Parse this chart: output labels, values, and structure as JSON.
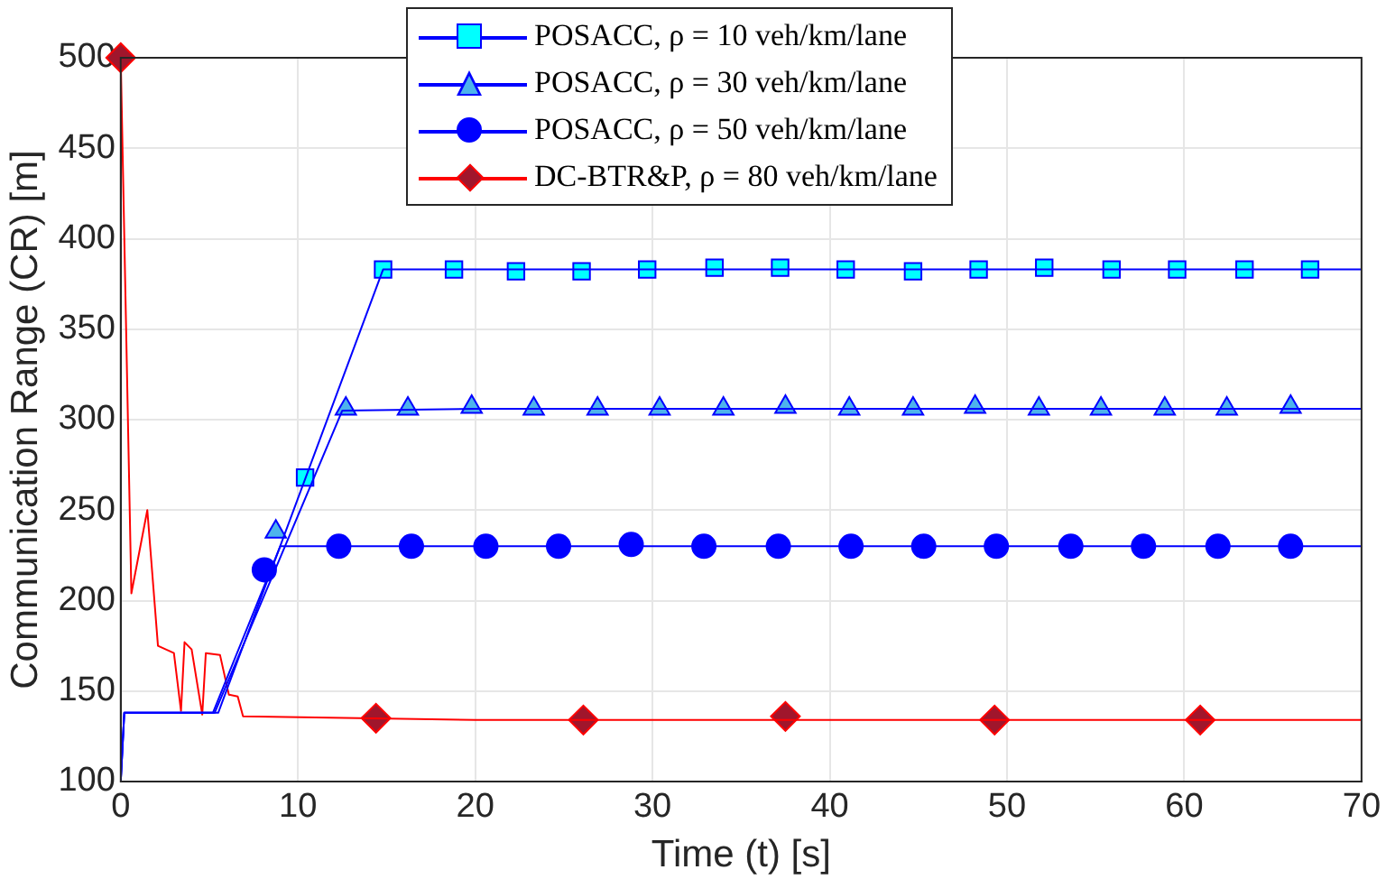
{
  "chart_data": {
    "type": "line",
    "xlabel": "Time (t) [s]",
    "ylabel": "Communication Range (CR) [m]",
    "xlim": [
      0,
      70
    ],
    "xticks": [
      0,
      10,
      20,
      30,
      40,
      50,
      60,
      70
    ],
    "ylim": [
      100,
      500
    ],
    "yticks": [
      100,
      150,
      200,
      250,
      300,
      350,
      400,
      450,
      500
    ],
    "grid": true,
    "legend": "top",
    "series": [
      {
        "color": "#0000ff",
        "marker": "none",
        "x": [
          0,
          0.2,
          5.5,
          14.8,
          20,
          30,
          40,
          50,
          60,
          70
        ],
        "values": [
          100,
          138,
          138,
          383,
          383,
          383,
          383,
          383,
          383,
          383
        ]
      },
      {
        "type": "scatter",
        "name": "POSACC, ρ = 10 veh/km/lane",
        "color": "#00ffff",
        "marker": "square",
        "x": [
          10.4,
          14.8,
          18.8,
          22.3,
          26.0,
          29.7,
          33.5,
          37.2,
          40.9,
          44.7,
          48.4,
          52.1,
          55.9,
          59.6,
          63.4,
          67.1
        ],
        "values": [
          268,
          383,
          383,
          382,
          382,
          383,
          384,
          384,
          383,
          382,
          383,
          384,
          383,
          383,
          383,
          383
        ]
      },
      {
        "color": "#0000ff",
        "marker": "none",
        "x": [
          0,
          0.2,
          5.3,
          12.5,
          20,
          30,
          40,
          50,
          60,
          70
        ],
        "values": [
          100,
          138,
          138,
          305,
          306,
          306,
          306,
          306,
          306,
          306
        ]
      },
      {
        "type": "scatter",
        "name": "POSACC, ρ = 30 veh/km/lane",
        "color": "#4db3ec",
        "marker": "triangle",
        "x": [
          8.75,
          12.7,
          16.2,
          19.8,
          23.3,
          26.9,
          30.4,
          34.0,
          37.5,
          41.1,
          44.7,
          48.2,
          51.8,
          55.3,
          58.9,
          62.4,
          66.0
        ],
        "values": [
          238,
          306,
          306,
          307,
          306,
          306,
          306,
          306,
          307,
          306,
          306,
          307,
          306,
          306,
          306,
          306,
          307
        ]
      },
      {
        "color": "#0000ff",
        "marker": "none",
        "x": [
          0,
          0.2,
          5.2,
          9.0,
          20,
          30,
          40,
          50,
          60,
          70
        ],
        "values": [
          100,
          138,
          138,
          230,
          230,
          230,
          230,
          230,
          230,
          230
        ]
      },
      {
        "type": "scatter",
        "name": "POSACC, ρ = 50 veh/km/lane",
        "color": "#0000ff",
        "marker": "circle",
        "x": [
          8.1,
          12.3,
          16.4,
          20.6,
          24.7,
          28.8,
          32.9,
          37.1,
          41.2,
          45.3,
          49.4,
          53.6,
          57.7,
          61.9,
          66.0
        ],
        "values": [
          217,
          230,
          230,
          230,
          230,
          231,
          230,
          230,
          230,
          230,
          230,
          230,
          230,
          230,
          230
        ]
      },
      {
        "color": "#ff0000",
        "marker": "none",
        "x": [
          0,
          0.6,
          1.5,
          2.1,
          3.0,
          3.4,
          3.6,
          4.0,
          4.6,
          4.8,
          5.6,
          6.1,
          6.6,
          6.9,
          20,
          40,
          60,
          70
        ],
        "values": [
          500,
          204,
          250,
          175,
          171,
          139,
          177,
          173,
          137,
          171,
          170,
          148,
          147,
          136,
          134,
          134,
          134,
          134
        ]
      },
      {
        "type": "scatter",
        "name": "DC-BTR&P, ρ = 80 veh/km/lane",
        "color": "#a0162c",
        "marker": "diamond",
        "x": [
          0,
          14.4,
          26.1,
          37.5,
          49.3,
          60.9
        ],
        "values": [
          500,
          135,
          134,
          136,
          134,
          134
        ]
      }
    ]
  }
}
